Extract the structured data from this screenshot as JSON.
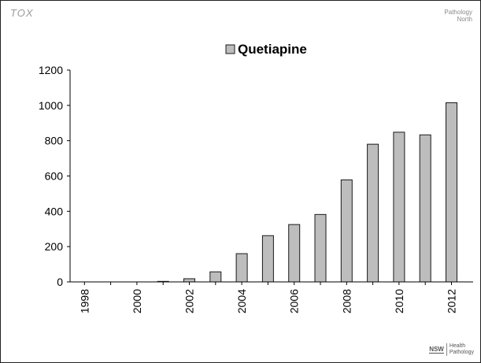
{
  "logos": {
    "top_left": "TOX",
    "top_right_line1": "Pathology",
    "top_right_line2": "North",
    "bottom_right_mark": "NSW",
    "bottom_right_line1": "Health",
    "bottom_right_line2": "Pathology"
  },
  "chart_data": {
    "type": "bar",
    "legend": "Quetiapine",
    "legend_position": "top-center",
    "categories": [
      "1998",
      "1999",
      "2000",
      "2001",
      "2002",
      "2003",
      "2004",
      "2005",
      "2006",
      "2007",
      "2008",
      "2009",
      "2010",
      "2011",
      "2012"
    ],
    "series": [
      {
        "name": "Quetiapine",
        "values": [
          0,
          0,
          0,
          3,
          18,
          57,
          160,
          262,
          325,
          382,
          578,
          780,
          848,
          833,
          1015
        ]
      }
    ],
    "x_tick_labels": [
      "1998",
      "2000",
      "2002",
      "2004",
      "2006",
      "2008",
      "2010",
      "2012"
    ],
    "y_ticks": [
      0,
      200,
      400,
      600,
      800,
      1000,
      1200
    ],
    "ylim": [
      0,
      1200
    ],
    "grid": false,
    "bar_color": "#bdbdbd",
    "bar_border": "#1a1a1a"
  }
}
